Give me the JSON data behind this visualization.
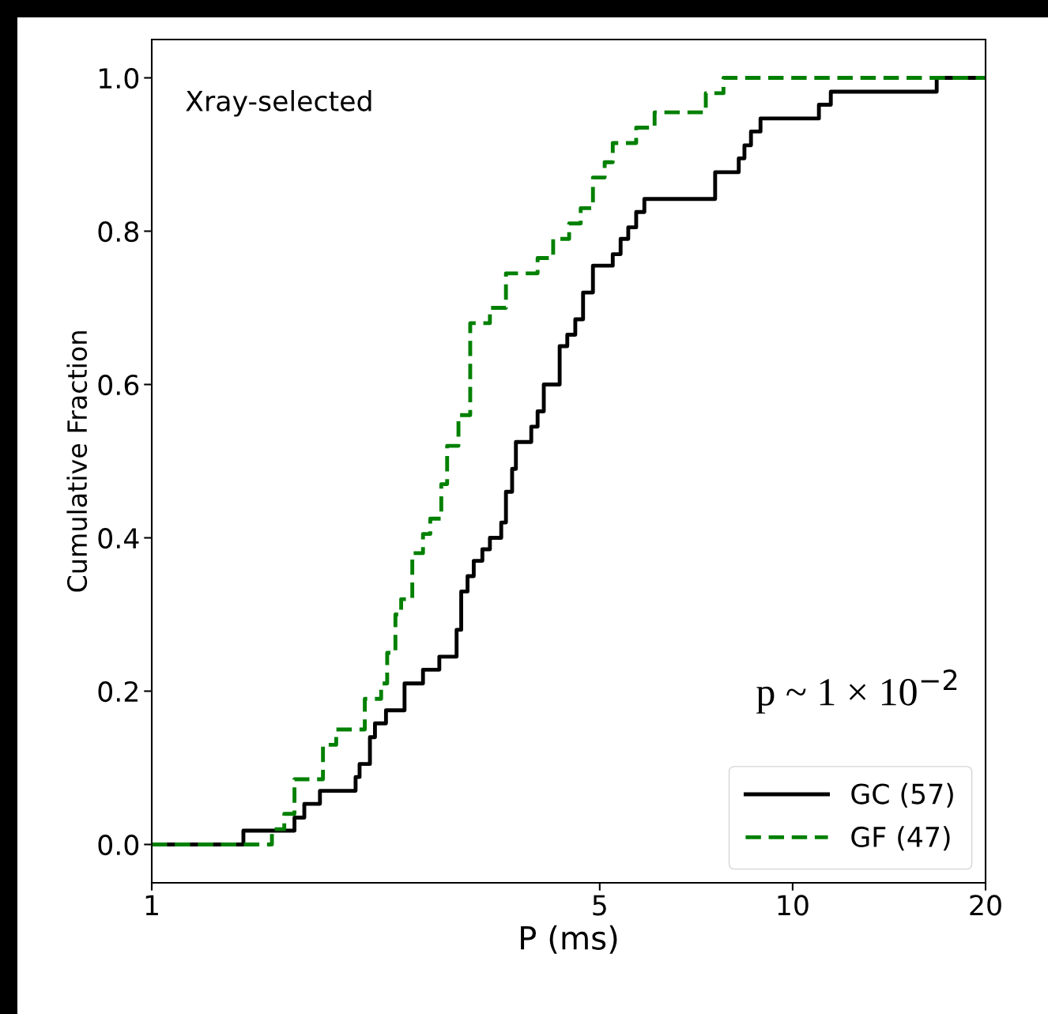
{
  "chart_data": {
    "type": "step",
    "xlabel": "P (ms)",
    "ylabel": "Cumulative Fraction",
    "log": "x",
    "xlim": [
      1,
      20
    ],
    "xticks": [
      1,
      5,
      10,
      20
    ],
    "ylim": [
      -0.05,
      1.05
    ],
    "yticks": [
      {
        "value": 0,
        "label": "0.0"
      },
      {
        "value": 0.2,
        "label": "0.2"
      },
      {
        "value": 0.4,
        "label": "0.4"
      },
      {
        "value": 0.6,
        "label": "0.6"
      },
      {
        "value": 0.8,
        "label": "0.8"
      },
      {
        "value": 1,
        "label": "1.0"
      }
    ],
    "legend": "bottom right",
    "grid": false,
    "annotations": [
      "Xray-selected",
      "p ~ 1 × 10$^{−2}$"
    ],
    "series": [
      {
        "name": "GC (57)",
        "color": "#000000",
        "line_style": "solid",
        "x": [
          1,
          1.39,
          1.67,
          1.73,
          1.83,
          2.08,
          2.11,
          2.19,
          2.23,
          2.32,
          2.48,
          2.65,
          2.81,
          2.99,
          3.04,
          3.11,
          3.18,
          3.28,
          3.37,
          3.51,
          3.57,
          3.65,
          3.7,
          3.91,
          4.0,
          4.09,
          4.33,
          4.45,
          4.58,
          4.71,
          4.88,
          5.24,
          5.39,
          5.54,
          5.7,
          5.87,
          7.57,
          8.24,
          8.41,
          8.61,
          8.91,
          10.99,
          11.47,
          16.78,
          20
        ],
        "values": [
          0,
          0.018,
          0.035,
          0.053,
          0.07,
          0.088,
          0.105,
          0.14,
          0.158,
          0.175,
          0.21,
          0.228,
          0.245,
          0.28,
          0.33,
          0.35,
          0.37,
          0.385,
          0.4,
          0.42,
          0.46,
          0.49,
          0.525,
          0.545,
          0.565,
          0.6,
          0.65,
          0.665,
          0.685,
          0.72,
          0.755,
          0.77,
          0.79,
          0.805,
          0.825,
          0.842,
          0.877,
          0.895,
          0.912,
          0.93,
          0.947,
          0.965,
          0.982,
          1.0,
          1.0
        ]
      },
      {
        "name": "GF (47)",
        "color": "#008000",
        "line_style": "dashed",
        "x": [
          1,
          1.54,
          1.61,
          1.67,
          1.85,
          1.94,
          2.15,
          2.28,
          2.33,
          2.4,
          2.45,
          2.55,
          2.65,
          2.72,
          2.83,
          2.89,
          3.01,
          3.14,
          3.37,
          3.57,
          4.0,
          4.23,
          4.48,
          4.67,
          4.88,
          5.09,
          5.24,
          5.7,
          6.09,
          7.32,
          7.8,
          20
        ],
        "values": [
          0,
          0.02,
          0.04,
          0.085,
          0.13,
          0.15,
          0.19,
          0.21,
          0.25,
          0.3,
          0.32,
          0.38,
          0.405,
          0.425,
          0.47,
          0.52,
          0.56,
          0.68,
          0.7,
          0.745,
          0.765,
          0.79,
          0.81,
          0.83,
          0.87,
          0.89,
          0.915,
          0.935,
          0.955,
          0.98,
          1.0,
          1.0
        ]
      }
    ]
  }
}
